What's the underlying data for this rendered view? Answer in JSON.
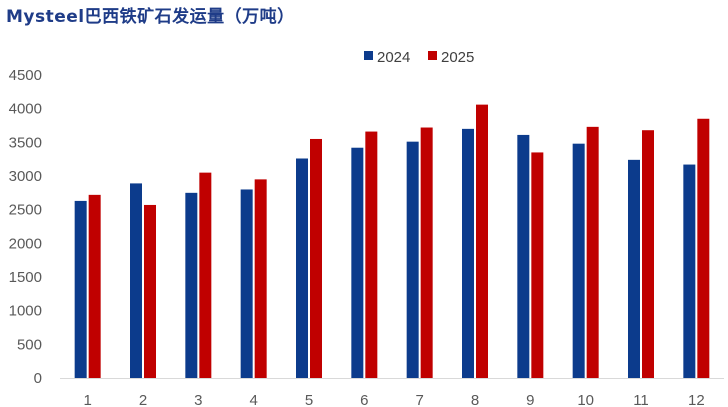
{
  "title": "Mysteel巴西铁矿石发运量（万吨）",
  "colors": {
    "2024": "#0c3b8c",
    "2025": "#c00000",
    "axis": "#d9d9d9",
    "text": "#595959",
    "title": "#1f3c88"
  },
  "chart_data": {
    "type": "bar",
    "title": "Mysteel巴西铁矿石发运量（万吨）",
    "xlabel": "",
    "ylabel": "",
    "categories": [
      "1",
      "2",
      "3",
      "4",
      "5",
      "6",
      "7",
      "8",
      "9",
      "10",
      "11",
      "12"
    ],
    "series": [
      {
        "name": "2024",
        "values": [
          2630,
          2890,
          2750,
          2800,
          3260,
          3420,
          3510,
          3700,
          3610,
          3480,
          3240,
          3170
        ]
      },
      {
        "name": "2025",
        "values": [
          2720,
          2570,
          3050,
          2950,
          3550,
          3660,
          3720,
          4060,
          3350,
          3730,
          3680,
          3850
        ]
      }
    ],
    "ylim": [
      0,
      4500
    ],
    "yticks": [
      "0",
      "500",
      "1000",
      "1500",
      "2000",
      "2500",
      "3000",
      "3500",
      "4000",
      "4500"
    ],
    "grid": false,
    "legend": "top-center"
  }
}
